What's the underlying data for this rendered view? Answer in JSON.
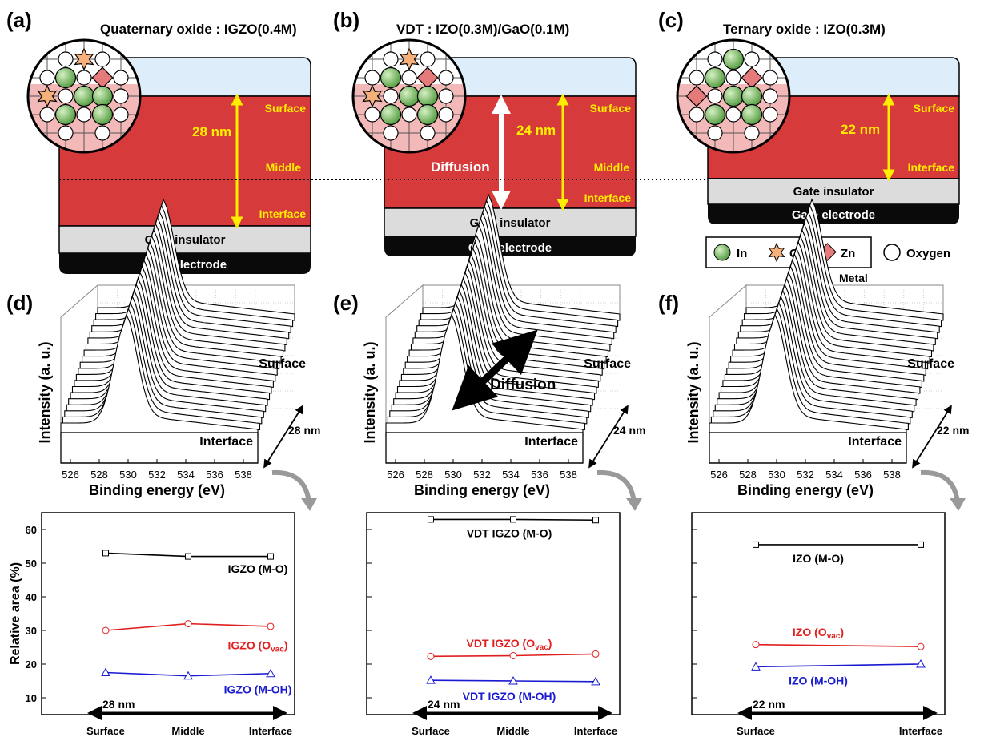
{
  "panels": {
    "a": {
      "tag": "(a)",
      "title": "Quaternary oxide : IGZO(0.4M)",
      "thickness": "28 nm",
      "surface": "Surface",
      "middle": "Middle",
      "interface": "Interface",
      "gi": "Gate insulator",
      "ge": "Gate electrode"
    },
    "b": {
      "tag": "(b)",
      "title": "VDT : IZO(0.3M)/GaO(0.1M)",
      "thickness": "24 nm",
      "diffusion": "Diffusion",
      "surface": "Surface",
      "middle": "Middle",
      "interface": "Interface",
      "gi": "Gate insulator",
      "ge": "Gate electrode"
    },
    "c": {
      "tag": "(c)",
      "title": "Ternary oxide : IZO(0.3M)",
      "thickness": "22 nm",
      "surface": "Surface",
      "interface": "Interface",
      "gi": "Gate insulator",
      "ge": "Gate electrode"
    }
  },
  "legend": {
    "in": "In",
    "ga": "Ga",
    "zn": "Zn",
    "oxygen": "Oxygen",
    "metal": "Metal"
  },
  "colors": {
    "film": "#d63a3a",
    "top": "#ddeefa",
    "gi": "#dcdcdc",
    "ge": "#0a0a0a",
    "yellow": "#ffee00",
    "in": "#7cc060",
    "ga": "#f6b07a",
    "zn": "#e57a7a",
    "mo": "#000000",
    "ovac": "#e02020",
    "moh": "#1a1ad0"
  },
  "xps": {
    "tags": [
      "(d)",
      "(e)",
      "(f)"
    ],
    "ylabel": "Intensity (a. u.)",
    "xlabel": "Binding energy (eV)",
    "ticks": [
      "526",
      "528",
      "530",
      "532",
      "534",
      "536",
      "538"
    ],
    "surface": "Surface",
    "interface": "Interface",
    "diffusion": "Diffusion",
    "depths": [
      "28 nm",
      "24 nm",
      "22 nm"
    ]
  },
  "chart_data": [
    {
      "type": "line",
      "categories": [
        "Surface",
        "Middle",
        "Interface"
      ],
      "ylabel": "Relative area (%)",
      "ylim": [
        5,
        65
      ],
      "yticks": [
        10,
        20,
        30,
        40,
        50,
        60
      ],
      "depth_label": "28 nm",
      "series": [
        {
          "name": "IGZO (M-O)",
          "values": [
            53,
            52,
            52
          ]
        },
        {
          "name": "IGZO (Ovac)",
          "values": [
            30,
            32,
            31.2
          ]
        },
        {
          "name": "IGZO (M-OH)",
          "values": [
            17.5,
            16.5,
            17.2
          ]
        }
      ]
    },
    {
      "type": "line",
      "categories": [
        "Surface",
        "Middle",
        "Interface"
      ],
      "ylim": [
        5,
        65
      ],
      "depth_label": "24 nm",
      "series": [
        {
          "name": "VDT IGZO (M-O)",
          "values": [
            63,
            63,
            62.8
          ]
        },
        {
          "name": "VDT IGZO (Ovac)",
          "values": [
            22.3,
            22.5,
            23
          ]
        },
        {
          "name": "VDT IGZO (M-OH)",
          "values": [
            15.2,
            15,
            14.8
          ]
        }
      ]
    },
    {
      "type": "line",
      "categories": [
        "Surface",
        "Interface"
      ],
      "ylim": [
        5,
        65
      ],
      "depth_label": "22 nm",
      "series": [
        {
          "name": "IZO (M-O)",
          "values": [
            55.5,
            55.5
          ]
        },
        {
          "name": "IZO (Ovac)",
          "values": [
            25.8,
            25.2
          ]
        },
        {
          "name": "IZO (M-OH)",
          "values": [
            19.2,
            20
          ]
        }
      ]
    }
  ]
}
